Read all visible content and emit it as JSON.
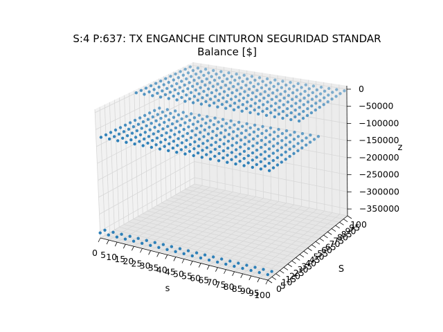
{
  "chart_data": {
    "type": "scatter3d",
    "title": "S:4 P:637: TX ENGANCHE CINTURON SEGURIDAD STANDAR",
    "subtitle": "Balance [$]",
    "xlabel": "s",
    "ylabel": "S",
    "zlabel": "z",
    "x_ticks": [
      "0",
      "5",
      "10",
      "15",
      "20",
      "25",
      "30",
      "35",
      "40",
      "45",
      "50",
      "55",
      "60",
      "65",
      "70",
      "75",
      "80",
      "85",
      "90",
      "95",
      "100"
    ],
    "y_ticks": [
      "0",
      "5",
      "10",
      "15",
      "20",
      "25",
      "30",
      "35",
      "40",
      "45",
      "50",
      "55",
      "60",
      "65",
      "70",
      "75",
      "80",
      "85",
      "90",
      "95",
      "100"
    ],
    "z_ticks": [
      "0",
      "−50000",
      "−100000",
      "−150000",
      "−200000",
      "−250000",
      "−300000",
      "−350000"
    ],
    "xlim": [
      0,
      100
    ],
    "ylim": [
      0,
      100
    ],
    "zlim": [
      -370000,
      10000
    ],
    "grid": true,
    "marker_color": "#1f77b4",
    "surfaces": [
      {
        "z": 0,
        "s_range": [
          0,
          100
        ],
        "S_range": [
          42,
          100
        ],
        "step": 5
      },
      {
        "z": -80000,
        "s_range": [
          0,
          100
        ],
        "S_range": [
          5,
          65
        ],
        "step": 5
      },
      {
        "z": -355000,
        "s_range": [
          0,
          100
        ],
        "S_range": [
          0,
          5
        ],
        "step": 5
      }
    ]
  }
}
